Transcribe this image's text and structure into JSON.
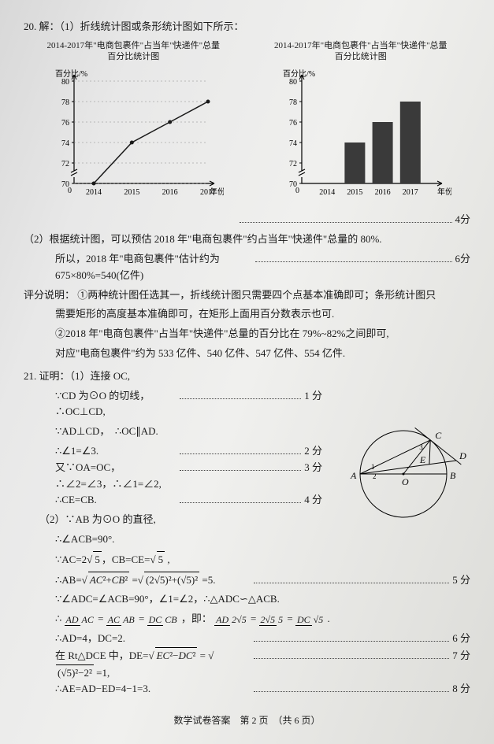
{
  "q20": {
    "number": "20.",
    "part1_intro": "解：（1）折线统计图或条形统计图如下所示：",
    "chart1": {
      "type": "line",
      "title": "2014-2017年\"电商包裹件\"占当年\"快递件\"总量\n百分比统计图",
      "ylabel": "百分比/%",
      "xlabel": "年份",
      "categories": [
        "2014",
        "2015",
        "2016",
        "2017"
      ],
      "values": [
        70,
        74,
        76,
        78
      ],
      "yticks": [
        70,
        72,
        74,
        76,
        78,
        80
      ],
      "colors": {
        "line": "#1a1a1a",
        "axis": "#000",
        "grid": "#888"
      }
    },
    "chart2": {
      "type": "bar",
      "title": "2014-2017年\"电商包裹件\"占当年\"快递件\"总量\n百分比统计图",
      "ylabel": "百分比/%",
      "xlabel": "年份",
      "categories": [
        "2014",
        "2015",
        "2016",
        "2017"
      ],
      "values": [
        70,
        74,
        76,
        78
      ],
      "yticks": [
        70,
        72,
        74,
        76,
        78,
        80
      ],
      "colors": {
        "bar": "#3a3a3a",
        "axis": "#000"
      }
    },
    "score1": "4分",
    "part2_l1": "（2）根据统计图，可以预估 2018 年\"电商包裹件\"约占当年\"快递件\"总量的 80%.",
    "part2_l2": "所以，2018 年\"电商包裹件\"估计约为 675×80%=540(亿件)",
    "score2": "6分",
    "note_head": "评分说明：",
    "note1": "①两种统计图任选其一，折线统计图只需要四个点基本准确即可；条形统计图只",
    "note1b": "需要矩形的高度基本准确即可，在矩形上面用百分数表示也可.",
    "note2": "②2018 年\"电商包裹件\"占当年\"快递件\"总量的百分比在 79%~82%之间即可,",
    "note2b": "对应\"电商包裹件\"约为 533 亿件、540 亿件、547 亿件、554 亿件."
  },
  "q21": {
    "number": "21.",
    "head": "证明：（1）连接 OC,",
    "s1": "∵CD 为⊙O 的切线，∴OC⊥CD,",
    "p1": "1 分",
    "s2": "∵AD⊥CD，　∴OC∥AD.",
    "s3": "∴∠1=∠3.",
    "p3": "2 分",
    "s4": "又∵OA=OC，∴∠2=∠3，∴∠1=∠2,",
    "p4": "3 分",
    "s5": "∴CE=CB.",
    "p5": "4 分",
    "part2_head": "（2）∵AB 为⊙O 的直径,",
    "t1": "∴∠ACB=90°.",
    "t2_a": "∵AC=2",
    "t2_b": "，CB=CE=",
    "t3_a": "∴AB=",
    "t3_mid": "=",
    "t3_b": "=5.",
    "p_t3": "5 分",
    "t4": "∵∠ADC=∠ACB=90°，∠1=∠2，∴△ADC∽△ACB.",
    "t5_pre": "∴",
    "t5_mid": "，即：",
    "t6": "∴AD=4，DC=2.",
    "p_t6": "6 分",
    "t7_a": "在 Rt△DCE 中，DE=",
    "t7_b": "=1,",
    "p_t7": "7 分",
    "t8": "∴AE=AD−ED=4−1=3.",
    "p_t8": "8 分",
    "diagram": {
      "labels": {
        "A": "A",
        "B": "B",
        "C": "C",
        "D": "D",
        "E": "E",
        "O": "O"
      },
      "angles": [
        "1",
        "2",
        "3"
      ],
      "colors": {
        "stroke": "#000",
        "fill": "none"
      }
    }
  },
  "footer": "数学试卷答案　第 2 页　（共 6 页）"
}
